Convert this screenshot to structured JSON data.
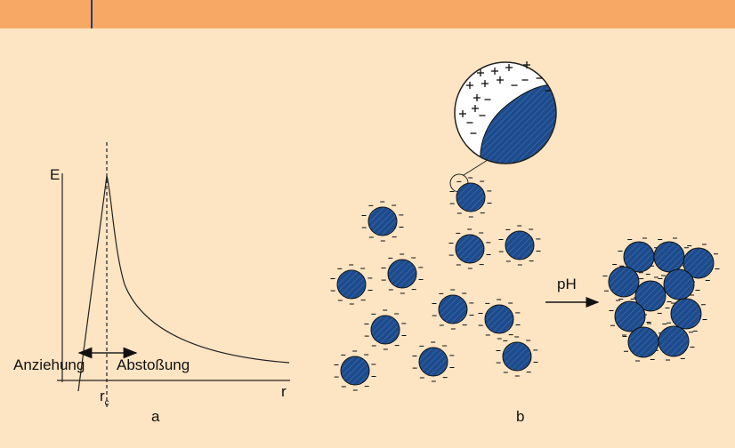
{
  "panel_a": {
    "y_axis_label": "E",
    "x_axis_label": "r",
    "critical_distance": {
      "symbol": "r",
      "subscript": "c"
    },
    "attraction_label": "Anziehung",
    "repulsion_label": "Abstoßung",
    "caption": "a"
  },
  "panel_b": {
    "arrow_label": "pH",
    "caption": "b"
  }
}
